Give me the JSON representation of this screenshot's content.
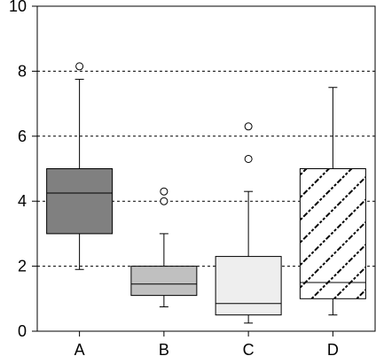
{
  "chart_data": {
    "type": "boxplot",
    "title": "",
    "xlabel": "",
    "ylabel": "",
    "ylim": [
      0,
      10
    ],
    "y_ticks": [
      0,
      2,
      4,
      6,
      8,
      10
    ],
    "grid": "horizontal dashed at 2, 4, 6, 8",
    "legend": "none",
    "categories": [
      "A",
      "B",
      "C",
      "D"
    ],
    "boxes": [
      {
        "category": "A",
        "whisker_low": 1.9,
        "q1": 3.0,
        "median": 4.25,
        "q3": 5.0,
        "whisker_high": 7.75,
        "outliers": [
          8.15
        ],
        "fill": "#808080",
        "pattern": "solid"
      },
      {
        "category": "B",
        "whisker_low": 0.75,
        "q1": 1.1,
        "median": 1.45,
        "q3": 2.0,
        "whisker_high": 3.0,
        "outliers": [
          4.0,
          4.3
        ],
        "fill": "#c0c0c0",
        "pattern": "solid"
      },
      {
        "category": "C",
        "whisker_low": 0.25,
        "q1": 0.5,
        "median": 0.85,
        "q3": 2.3,
        "whisker_high": 4.3,
        "outliers": [
          5.3,
          6.3
        ],
        "fill": "#eeeeee",
        "pattern": "solid"
      },
      {
        "category": "D",
        "whisker_low": 0.5,
        "q1": 1.0,
        "median": 1.5,
        "q3": 5.0,
        "whisker_high": 7.5,
        "outliers": [],
        "fill": "#ffffff",
        "pattern": "diagonal-hatch"
      }
    ]
  }
}
